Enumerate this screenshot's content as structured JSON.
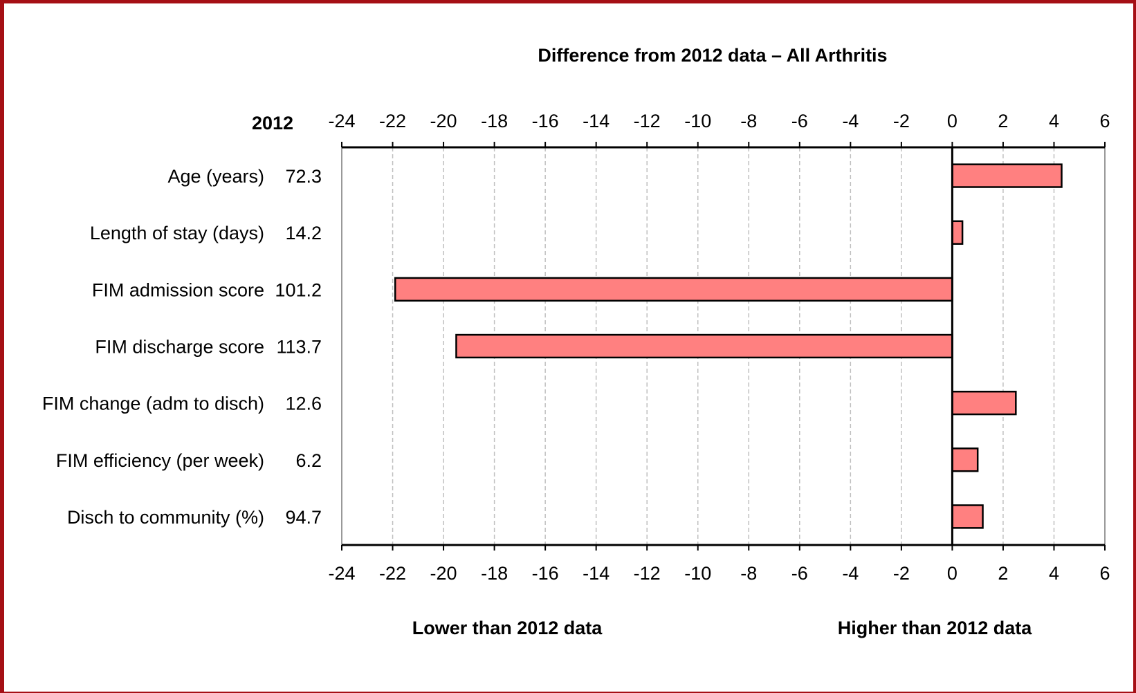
{
  "chart_data": {
    "type": "bar",
    "orientation": "horizontal",
    "title": "Difference from 2012 data – All Arthritis",
    "baseline_header": "2012",
    "categories": [
      "Age (years)",
      "Length of stay (days)",
      "FIM admission score",
      "FIM discharge score",
      "FIM change (adm to disch)",
      "FIM efficiency (per week)",
      "Disch to community (%)"
    ],
    "baseline_values": [
      "72.3",
      "14.2",
      "101.2",
      "113.7",
      "12.6",
      "6.2",
      "94.7"
    ],
    "values": [
      4.3,
      0.4,
      -21.9,
      -19.5,
      2.5,
      1.0,
      1.2
    ],
    "xlim": [
      -24,
      6
    ],
    "xticks": [
      -24,
      -22,
      -20,
      -18,
      -16,
      -14,
      -12,
      -10,
      -8,
      -6,
      -4,
      -2,
      0,
      2,
      4,
      6
    ],
    "grid": true,
    "lower_label": "Lower than 2012 data",
    "higher_label": "Higher than 2012 data",
    "colors": {
      "bar": "#ff8080",
      "border": "#a50f15",
      "grid": "#bfbfbf"
    }
  }
}
